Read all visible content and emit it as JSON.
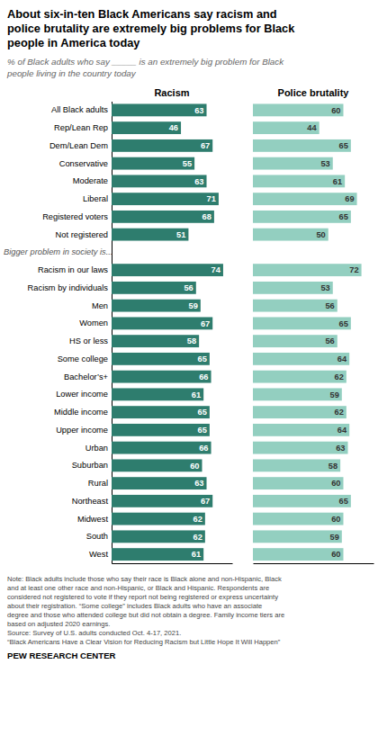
{
  "chart_data": {
    "type": "bar",
    "orientation": "horizontal",
    "title": "About six-in-ten Black Americans say racism and\npolice brutality are extremely big problems for Black\npeople in America today",
    "subtitle": "% of Black adults who say _____ is an extremely big problem for Black\npeople living in the country today",
    "categories": [
      "All Black adults",
      "Rep/Lean Rep",
      "Dem/Lean Dem",
      "Conservative",
      "Moderate",
      "Liberal",
      "Registered voters",
      "Not registered",
      "Bigger problem in society is...",
      "Racism in our laws",
      "Racism by individuals",
      "Men",
      "Women",
      "HS or less",
      "Some college",
      "Bachelor’s+",
      "Lower income",
      "Middle income",
      "Upper income",
      "Urban",
      "Suburban",
      "Rural",
      "Northeast",
      "Midwest",
      "South",
      "West"
    ],
    "series": [
      {
        "name": "Racism",
        "color": "#2e7d6e",
        "values": [
          63,
          46,
          67,
          55,
          63,
          71,
          68,
          51,
          null,
          74,
          56,
          59,
          67,
          58,
          65,
          66,
          61,
          65,
          65,
          66,
          60,
          63,
          67,
          62,
          62,
          61
        ]
      },
      {
        "name": "Police brutality",
        "color": "#93cfc0",
        "values": [
          60,
          44,
          65,
          53,
          61,
          69,
          65,
          50,
          null,
          72,
          53,
          56,
          65,
          56,
          64,
          62,
          59,
          62,
          64,
          63,
          58,
          60,
          65,
          60,
          59,
          60
        ]
      }
    ],
    "xlim": [
      0,
      80
    ],
    "data_labels": true,
    "tick_labels": "y",
    "annotations": [
      "Note: Black adults include those who say their race is Black alone and non-Hispanic, Black\nand at least one other race and non-Hispanic, or Black and Hispanic. Respondents are\nconsidered not registered to vote if they report not being registered or express uncertainty\nabout their registration. “Some college” includes Black adults who have an associate\ndegree and those who attended college but did not obtain a degree. Family income tiers are\nbased on adjusted 2020 earnings.\nSource: Survey of U.S. adults conducted Oct. 4-17, 2021.\n“Black Americans Have a Clear Vision for Reducing Racism but Little Hope It Will Happen”",
      "PEW RESEARCH CENTER"
    ]
  }
}
